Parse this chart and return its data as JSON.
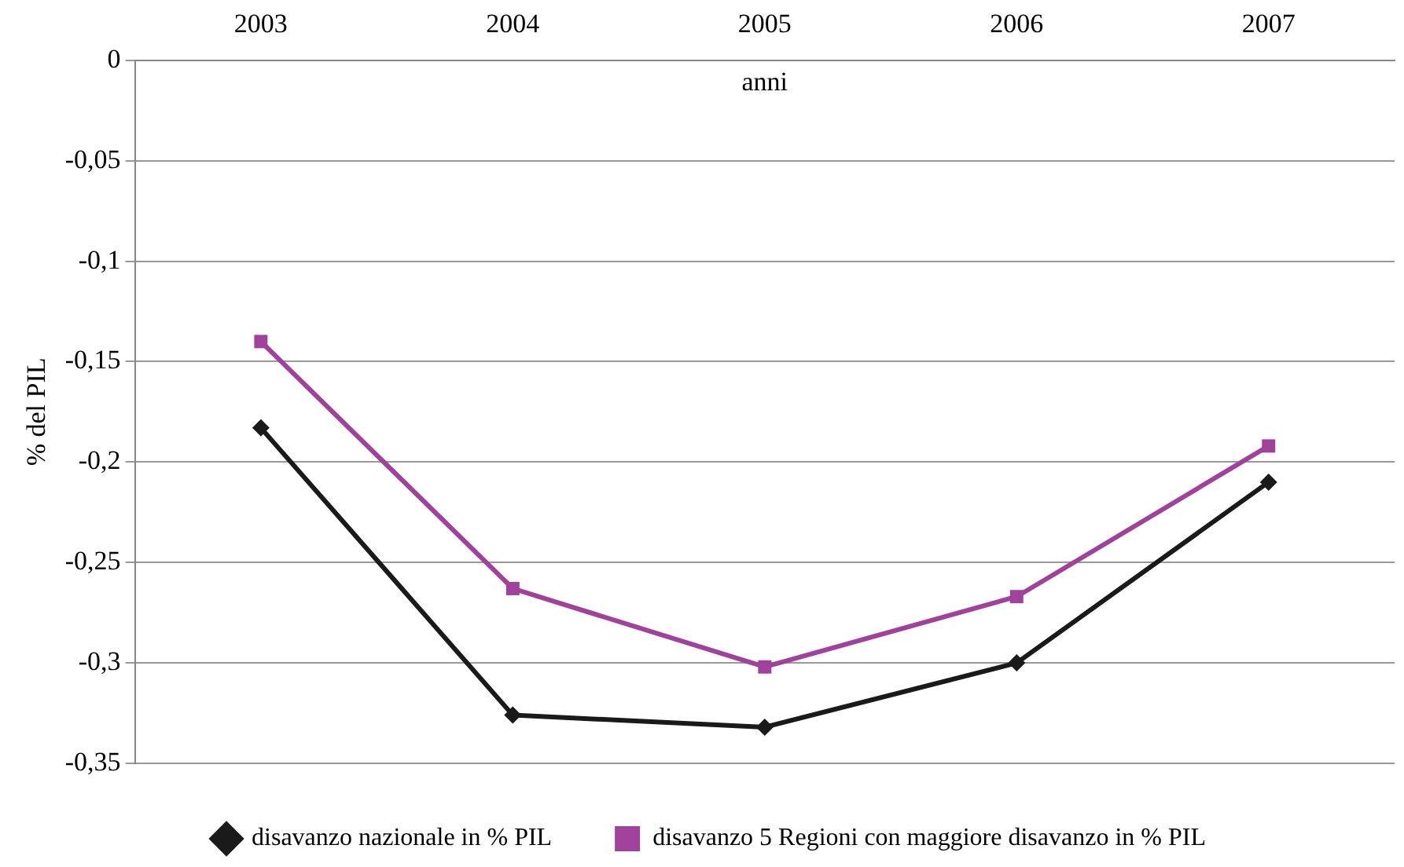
{
  "chart_data": {
    "type": "line",
    "xlabel": "anni",
    "ylabel": "% del PIL",
    "categories": [
      "2003",
      "2004",
      "2005",
      "2006",
      "2007"
    ],
    "series": [
      {
        "name": "disavanzo nazionale in % PIL",
        "color": "#1a1a1a",
        "marker": "diamond",
        "values": [
          -0.183,
          -0.326,
          -0.332,
          -0.3,
          -0.21
        ]
      },
      {
        "name": "disavanzo 5 Regioni con maggiore disavanzo in % PIL",
        "color": "#a0429b",
        "marker": "square",
        "values": [
          -0.14,
          -0.263,
          -0.302,
          -0.267,
          -0.192
        ]
      }
    ],
    "ylim": [
      -0.35,
      0
    ],
    "yticks": [
      {
        "value": -0.35,
        "label": "-0,35"
      },
      {
        "value": -0.3,
        "label": "-0,3"
      },
      {
        "value": -0.25,
        "label": "-0,25"
      },
      {
        "value": -0.2,
        "label": "-0,2"
      },
      {
        "value": -0.15,
        "label": "-0,15"
      },
      {
        "value": -0.1,
        "label": "-0,1"
      },
      {
        "value": -0.05,
        "label": "-0,05"
      },
      {
        "value": 0,
        "label": "0"
      }
    ],
    "grid": "y",
    "legend": "bottom",
    "line_style": "solid"
  }
}
